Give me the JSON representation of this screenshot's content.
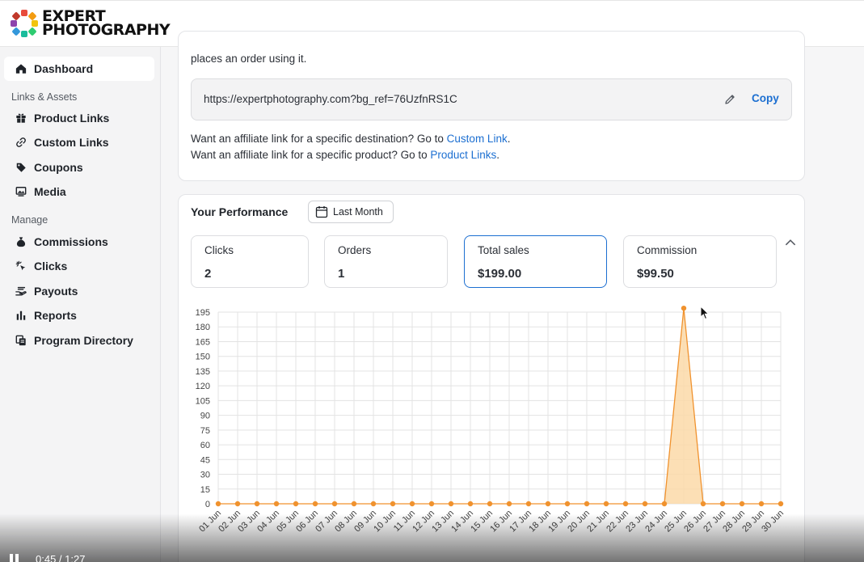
{
  "brand": {
    "line1": "EXPERT",
    "line2": "PHOTOGRAPHY"
  },
  "sidebar": {
    "dashboard": "Dashboard",
    "section1": "Links & Assets",
    "product_links": "Product Links",
    "custom_links": "Custom Links",
    "coupons": "Coupons",
    "media": "Media",
    "section2": "Manage",
    "commissions": "Commissions",
    "clicks": "Clicks",
    "payouts": "Payouts",
    "reports": "Reports",
    "program_directory": "Program Directory"
  },
  "link_card": {
    "intro_tail": "places an order using it.",
    "url": "https://expertphotography.com?bg_ref=76UzfnRS1C",
    "copy": "Copy",
    "dest_prefix": "Want an affiliate link for a specific destination? Go to ",
    "dest_link": "Custom Link",
    "prod_prefix": "Want an affiliate link for a specific product? Go to ",
    "prod_link": "Product Links",
    "period": "."
  },
  "performance": {
    "title": "Your Performance",
    "range": "Last Month",
    "stats": [
      {
        "label": "Clicks",
        "value": "2"
      },
      {
        "label": "Orders",
        "value": "1"
      },
      {
        "label": "Total sales",
        "value": "$199.00"
      },
      {
        "label": "Commission",
        "value": "$99.50"
      }
    ]
  },
  "colors": {
    "accent": "#1c6fd1",
    "series": "#f0922e",
    "series_fill": "#fbd9a8"
  },
  "chart_data": {
    "type": "area",
    "x": [
      "01 Jun",
      "02 Jun",
      "03 Jun",
      "04 Jun",
      "05 Jun",
      "06 Jun",
      "07 Jun",
      "08 Jun",
      "09 Jun",
      "10 Jun",
      "11 Jun",
      "12 Jun",
      "13 Jun",
      "14 Jun",
      "15 Jun",
      "16 Jun",
      "17 Jun",
      "18 Jun",
      "19 Jun",
      "20 Jun",
      "21 Jun",
      "22 Jun",
      "23 Jun",
      "24 Jun",
      "25 Jun",
      "26 Jun",
      "27 Jun",
      "28 Jun",
      "29 Jun",
      "30 Jun"
    ],
    "values": [
      0,
      0,
      0,
      0,
      0,
      0,
      0,
      0,
      0,
      0,
      0,
      0,
      0,
      0,
      0,
      0,
      0,
      0,
      0,
      0,
      0,
      0,
      0,
      0,
      199,
      0,
      0,
      0,
      0,
      0
    ],
    "yticks": [
      0,
      15,
      30,
      45,
      60,
      75,
      90,
      105,
      120,
      135,
      150,
      165,
      180,
      195
    ],
    "ylim": [
      0,
      195
    ],
    "grid": true,
    "legend": "none"
  },
  "video": {
    "time": "0:45 / 1:27"
  }
}
